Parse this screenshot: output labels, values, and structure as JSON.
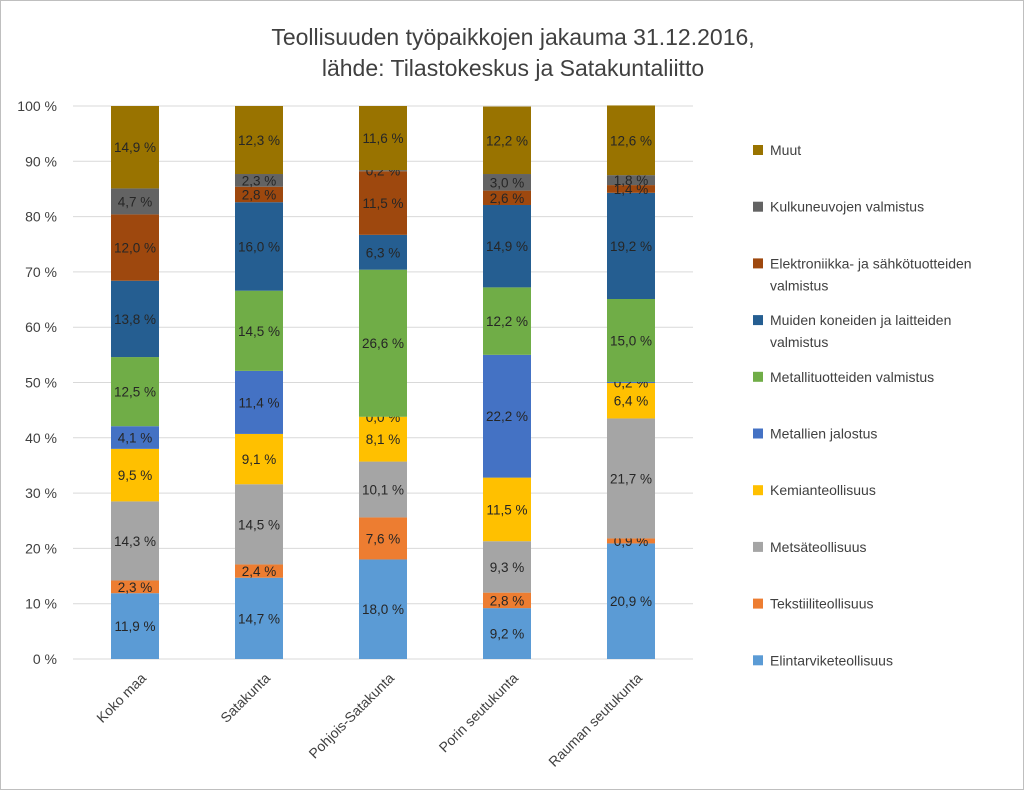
{
  "chart_data": {
    "type": "bar",
    "stacked": true,
    "title_line1": "Teollisuuden työpaikkojen jakauma 31.12.2016,",
    "title_line2": "lähde: Tilastokeskus ja Satakuntaliitto",
    "categories": [
      "Koko maa",
      "Satakunta",
      "Pohjois-Satakunta",
      "Porin seutukunta",
      "Rauman seutukunta"
    ],
    "y_ticks": [
      "0 %",
      "10 %",
      "20 %",
      "30 %",
      "40 %",
      "50 %",
      "60 %",
      "70 %",
      "80 %",
      "90 %",
      "100 %"
    ],
    "ylim": [
      0,
      100
    ],
    "grid": true,
    "legend_position": "right",
    "series": [
      {
        "name": "Elintarviketeollisuus",
        "color": "#5B9BD5",
        "values": [
          11.9,
          14.7,
          18.0,
          9.2,
          20.9
        ],
        "labels": [
          "11,9 %",
          "14,7 %",
          "18,0 %",
          "9,2 %",
          "20,9 %"
        ]
      },
      {
        "name": "Tekstiiliteollisuus",
        "color": "#ED7D31",
        "values": [
          2.3,
          2.4,
          7.6,
          2.8,
          0.9
        ],
        "labels": [
          "2,3 %",
          "2,4 %",
          "7,6 %",
          "2,8 %",
          "0,9 %"
        ]
      },
      {
        "name": "Metsäteollisuus",
        "color": "#A5A5A5",
        "values": [
          14.3,
          14.5,
          10.1,
          9.3,
          21.7
        ],
        "labels": [
          "14,3 %",
          "14,5 %",
          "10,1 %",
          "9,3 %",
          "21,7 %"
        ]
      },
      {
        "name": "Kemianteollisuus",
        "color": "#FFC000",
        "values": [
          9.5,
          9.1,
          8.1,
          11.5,
          6.4
        ],
        "labels": [
          "9,5 %",
          "9,1 %",
          "8,1 %",
          "11,5 %",
          "6,4 %"
        ]
      },
      {
        "name": "Metallien jalostus",
        "color": "#4472C4",
        "values": [
          4.1,
          11.4,
          0.0,
          22.2,
          0.2
        ],
        "labels": [
          "4,1 %",
          "11,4 %",
          "0,0 %",
          "22,2 %",
          "0,2 %"
        ]
      },
      {
        "name": "Metallituotteiden valmistus",
        "color": "#70AD47",
        "values": [
          12.5,
          14.5,
          26.6,
          12.2,
          15.0
        ],
        "labels": [
          "12,5 %",
          "14,5 %",
          "26,6 %",
          "12,2 %",
          "15,0 %"
        ]
      },
      {
        "name": "Muiden koneiden ja laitteiden valmistus",
        "color": "#255E91",
        "values": [
          13.8,
          16.0,
          6.3,
          14.9,
          19.2
        ],
        "labels": [
          "13,8 %",
          "16,0 %",
          "6,3 %",
          "14,9 %",
          "19,2 %"
        ]
      },
      {
        "name": "Elektroniikka- ja sähkötuotteiden valmistus",
        "color": "#9E480E",
        "values": [
          12.0,
          2.8,
          11.5,
          2.6,
          1.4
        ],
        "labels": [
          "12,0 %",
          "2,8 %",
          "11,5 %",
          "2,6 %",
          "1,4 %"
        ]
      },
      {
        "name": "Kulkuneuvojen valmistus",
        "color": "#636363",
        "values": [
          4.7,
          2.3,
          0.2,
          3.0,
          1.8
        ],
        "labels": [
          "4,7 %",
          "2,3 %",
          "0,2 %",
          "3,0 %",
          "1,8 %"
        ]
      },
      {
        "name": "Muut",
        "color": "#997300",
        "values": [
          14.9,
          12.3,
          11.6,
          12.2,
          12.6
        ],
        "labels": [
          "14,9 %",
          "12,3 %",
          "11,6 %",
          "12,2 %",
          "12,6 %"
        ]
      }
    ]
  }
}
